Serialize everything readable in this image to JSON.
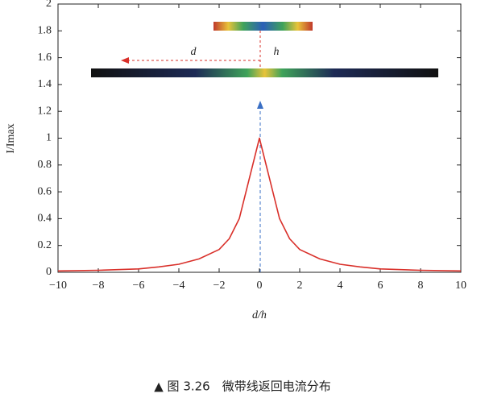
{
  "chart_data": {
    "type": "line",
    "x": [
      -10,
      -8,
      -6,
      -5,
      -4,
      -3,
      -2,
      -1.5,
      -1,
      -0.5,
      0,
      0.5,
      1,
      1.5,
      2,
      3,
      4,
      5,
      6,
      8,
      10
    ],
    "values": [
      0.01,
      0.015,
      0.025,
      0.04,
      0.06,
      0.1,
      0.17,
      0.25,
      0.4,
      0.7,
      1,
      0.7,
      0.4,
      0.25,
      0.17,
      0.1,
      0.06,
      0.04,
      0.025,
      0.015,
      0.01
    ],
    "color": "#d9302a",
    "xlim": [
      -10,
      10
    ],
    "xticks": [
      {
        "value": -10,
        "label": "−10"
      },
      {
        "value": -8,
        "label": "−8"
      },
      {
        "value": -6,
        "label": "−6"
      },
      {
        "value": -4,
        "label": "−4"
      },
      {
        "value": -2,
        "label": "−2"
      },
      0,
      2,
      4,
      6,
      8,
      10
    ],
    "ylim": [
      0,
      2
    ],
    "yticks": [
      0,
      0.2,
      0.4,
      0.6,
      0.8,
      1,
      1.2,
      1.4,
      1.6,
      1.8,
      2
    ],
    "xlabel": "d/h",
    "ylabel": "I/Imax",
    "annotations": [
      "d",
      "h"
    ],
    "caption": "▲ 图 3.26　微带线返回电流分布"
  }
}
